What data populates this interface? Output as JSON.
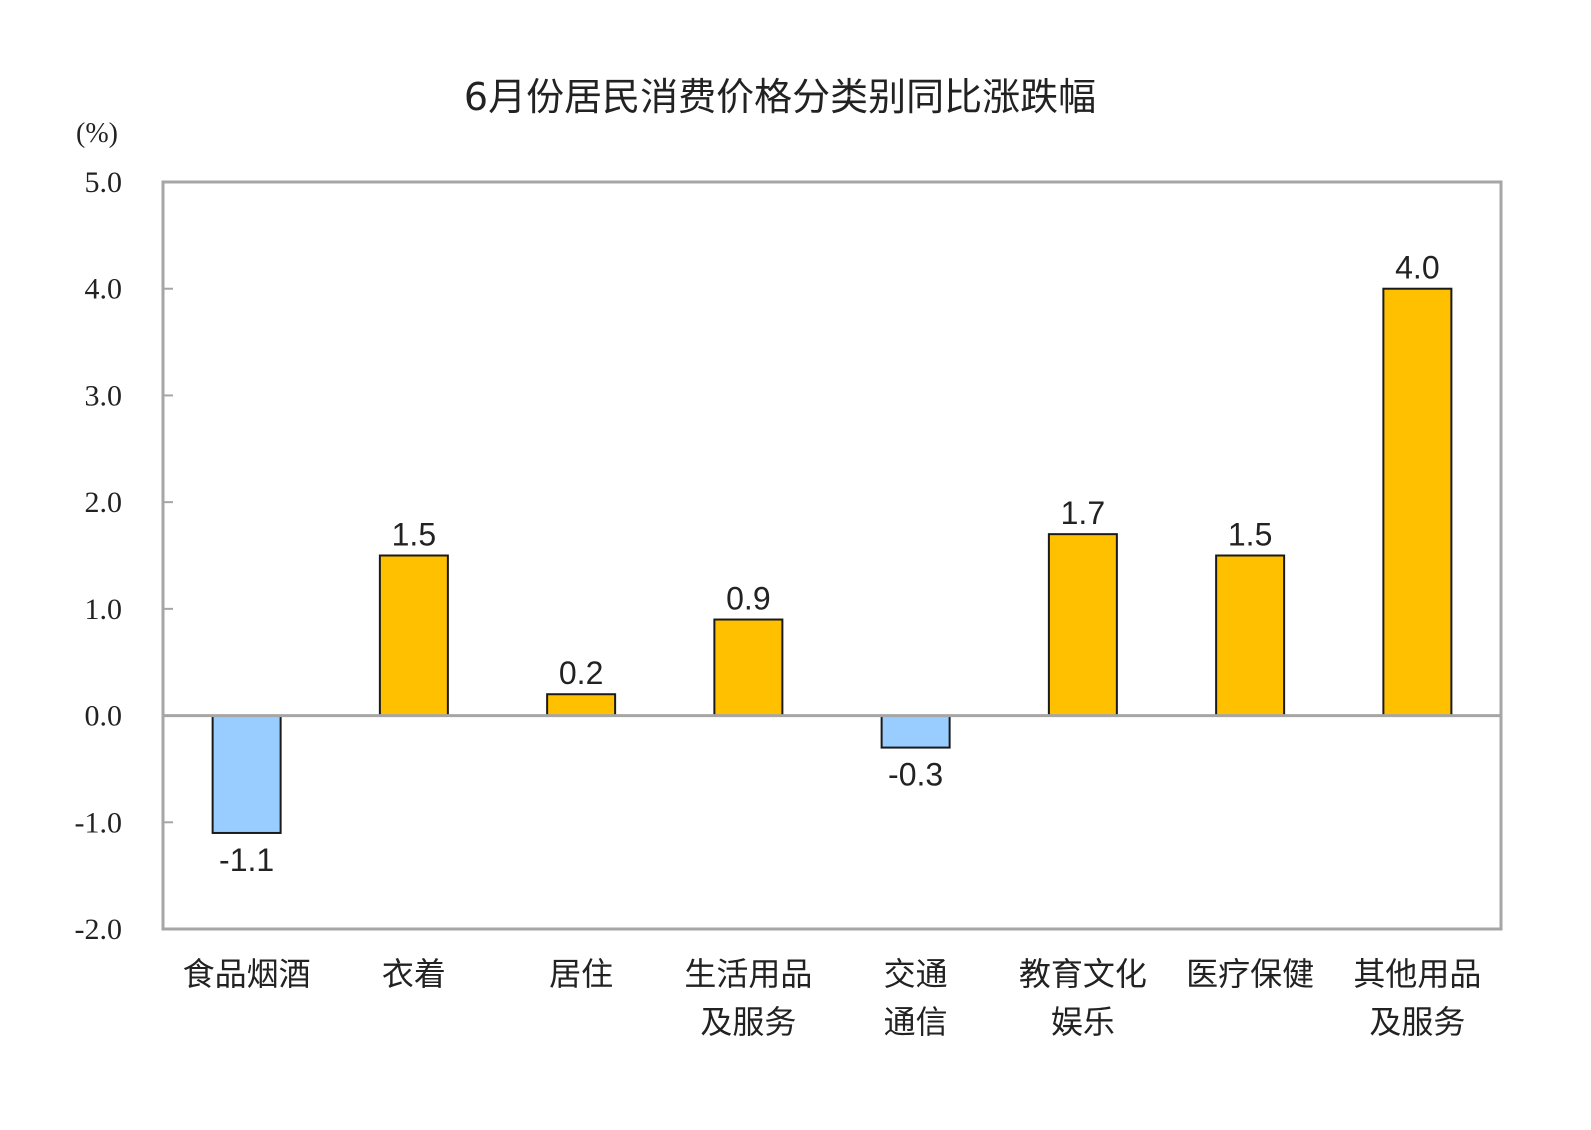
{
  "chart_data": {
    "type": "bar",
    "title": "6月份居民消费价格分类别同比涨跌幅",
    "ylabel": "(%)",
    "xlabel": "",
    "ylim": [
      -2.0,
      5.0
    ],
    "yticks": [
      "5.0",
      "4.0",
      "3.0",
      "2.0",
      "1.0",
      "0.0",
      "-1.0",
      "-2.0"
    ],
    "ytick_values": [
      5,
      4,
      3,
      2,
      1,
      0,
      -1,
      -2
    ],
    "categories": [
      [
        "食品烟酒"
      ],
      [
        "衣着"
      ],
      [
        "居住"
      ],
      [
        "生活用品",
        "及服务"
      ],
      [
        "交通",
        "通信"
      ],
      [
        "教育文化",
        "娱乐"
      ],
      [
        "医疗保健"
      ],
      [
        "其他用品",
        "及服务"
      ]
    ],
    "values": [
      -1.1,
      1.5,
      0.2,
      0.9,
      -0.3,
      1.7,
      1.5,
      4.0
    ],
    "data_labels": [
      "-1.1",
      "1.5",
      "0.2",
      "0.9",
      "-0.3",
      "1.7",
      "1.5",
      "4.0"
    ],
    "grid": false,
    "colors": {
      "positive": "#FFC000",
      "negative": "#99CCFF",
      "axis": "#A6A6A6"
    }
  }
}
